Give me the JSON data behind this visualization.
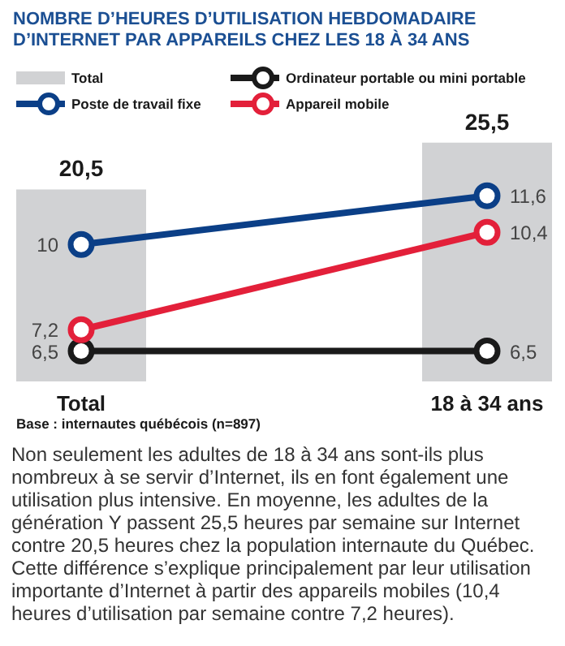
{
  "chart_data": {
    "type": "line",
    "title": "NOMBRE D’HEURES D’UTILISATION HEBDOMADAIRE D’INTERNET PAR APPAREILS CHEZ LES 18 À 34 ANS",
    "categories": [
      "Total",
      "18 à 34 ans"
    ],
    "series": [
      {
        "name": "Total",
        "type": "bar",
        "color": "#d1d2d4",
        "values": [
          20.5,
          25.5
        ],
        "value_labels": [
          "20,5",
          "25,5"
        ]
      },
      {
        "name": "Ordinateur portable ou mini portable",
        "color": "#1a1a1a",
        "axis": "y2",
        "values": [
          6.5,
          6.5
        ],
        "value_labels": [
          "6,5",
          "6,5"
        ]
      },
      {
        "name": "Poste de travail fixe",
        "color": "#0b3f87",
        "axis": "y2",
        "values": [
          10,
          11.6
        ],
        "value_labels": [
          "10",
          "11,6"
        ]
      },
      {
        "name": "Appareil mobile",
        "color": "#e3203a",
        "axis": "y2",
        "values": [
          7.2,
          10.4
        ],
        "value_labels": [
          "7,2",
          "10,4"
        ]
      }
    ],
    "ylim": [
      0,
      26
    ],
    "y2lim": [
      5.5,
      13.5
    ],
    "tick_labels": "x",
    "grid": false,
    "legend": "top",
    "marker": "circle",
    "line_style": "solid",
    "annotations": [
      "Base : internautes québécois (n=897)",
      "Non seulement les adultes de 18 à 34 ans sont-ils plus nombreux à se servir d’Internet, ils en font également une utilisation plus intensive. En moyenne, les adultes de la génération Y passent 25,5 heures par semaine sur Internet contre 20,5 heures chez la population internaute du Québec. Cette différence s’explique principalement par leur utilisation importante d’Internet à partir des appareils mobiles (10,4 heures d’utilisation par semaine contre 7,2 heures)."
    ]
  }
}
